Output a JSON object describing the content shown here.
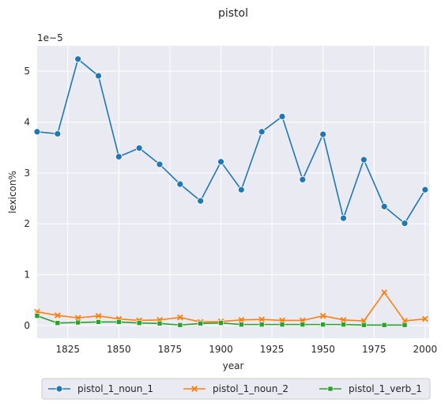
{
  "chart_data": {
    "type": "line",
    "title": "pistol",
    "xlabel": "year",
    "ylabel": "lexicon%",
    "y_scale_label": "1e−5",
    "xlim": [
      1810,
      2002
    ],
    "ylim": [
      -0.25,
      5.5
    ],
    "x_ticks": [
      1825,
      1850,
      1875,
      1900,
      1925,
      1950,
      1975,
      2000
    ],
    "y_ticks": [
      0,
      1,
      2,
      3,
      4,
      5
    ],
    "grid": true,
    "legend_position": "bottom-center",
    "x": [
      1810,
      1820,
      1830,
      1840,
      1850,
      1860,
      1870,
      1880,
      1890,
      1900,
      1910,
      1920,
      1930,
      1940,
      1950,
      1960,
      1970,
      1980,
      1990,
      2000
    ],
    "series": [
      {
        "name": "pistol_1_noun_1",
        "color": "#1f77b4",
        "marker": "circle",
        "values": [
          3.81,
          3.77,
          5.24,
          4.91,
          3.32,
          3.49,
          3.17,
          2.78,
          2.45,
          3.22,
          2.67,
          3.81,
          4.11,
          2.87,
          3.76,
          2.11,
          3.26,
          2.34,
          2.01,
          2.67
        ]
      },
      {
        "name": "pistol_1_noun_2",
        "color": "#ff7f0e",
        "marker": "x",
        "values": [
          0.27,
          0.2,
          0.15,
          0.19,
          0.13,
          0.1,
          0.11,
          0.16,
          0.07,
          0.08,
          0.11,
          0.12,
          0.1,
          0.1,
          0.19,
          0.11,
          0.09,
          0.65,
          0.09,
          0.13
        ]
      },
      {
        "name": "pistol_1_verb_1",
        "color": "#2ca02c",
        "marker": "square",
        "values": [
          0.19,
          0.05,
          0.06,
          0.07,
          0.07,
          0.05,
          0.04,
          0.01,
          0.04,
          0.05,
          0.02,
          0.02,
          0.02,
          0.02,
          0.02,
          0.02,
          0.01,
          0.01,
          0.01,
          null
        ]
      }
    ]
  }
}
